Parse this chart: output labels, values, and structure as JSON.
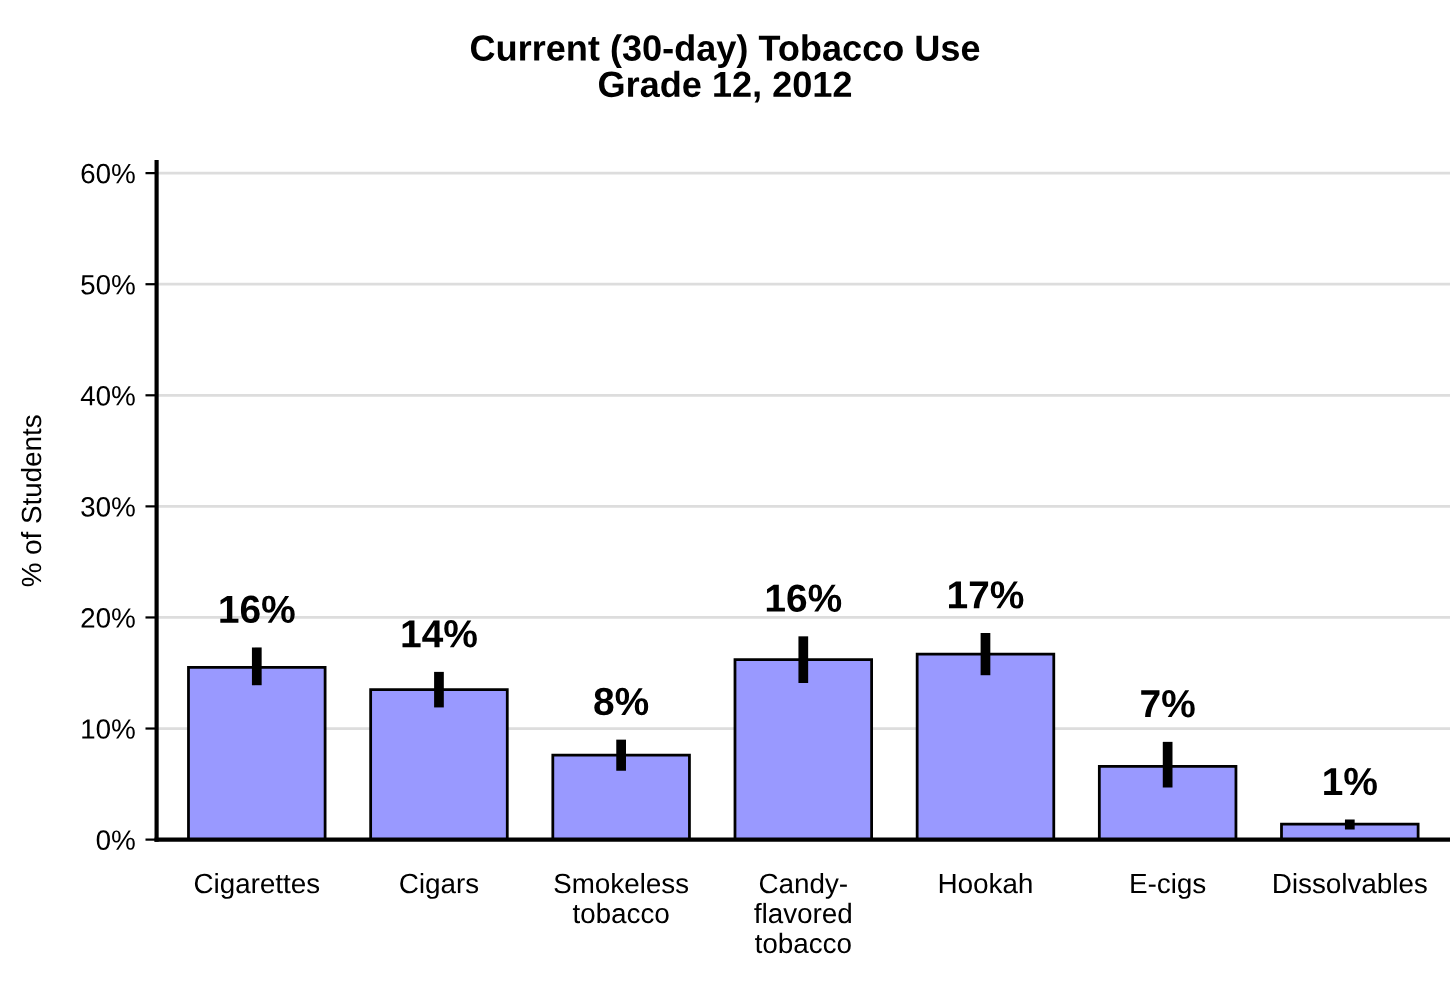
{
  "chart_data": {
    "type": "bar",
    "title": "Current (30-day) Tobacco Use\nGrade 12, 2012",
    "ylabel": "% of Students",
    "categories": [
      "Cigarettes",
      "Cigars",
      "Smokeless\ntobacco",
      "Candy-\nflavored\ntobacco",
      "Hookah",
      "E-cigs",
      "Dissolvables"
    ],
    "values": [
      15.5,
      13.5,
      7.6,
      16.2,
      16.7,
      6.6,
      1.4
    ],
    "errors": [
      [
        13.9,
        17.3
      ],
      [
        11.9,
        15.1
      ],
      [
        6.2,
        9.0
      ],
      [
        14.1,
        18.3
      ],
      [
        14.8,
        18.6
      ],
      [
        4.7,
        8.8
      ],
      [
        0.9,
        1.8
      ]
    ],
    "value_labels": [
      "16%",
      "14%",
      "8%",
      "16%",
      "17%",
      "7%",
      "1%"
    ],
    "color": "#9999ff",
    "ylim": [
      0,
      61
    ],
    "yticks": [
      {
        "value": 0,
        "label": "0%"
      },
      {
        "value": 10,
        "label": "10%"
      },
      {
        "value": 20,
        "label": "20%"
      },
      {
        "value": 30,
        "label": "30%"
      },
      {
        "value": 40,
        "label": "40%"
      },
      {
        "value": 50,
        "label": "50%"
      },
      {
        "value": 60,
        "label": "60%"
      }
    ],
    "grid": "y",
    "legend": false
  }
}
